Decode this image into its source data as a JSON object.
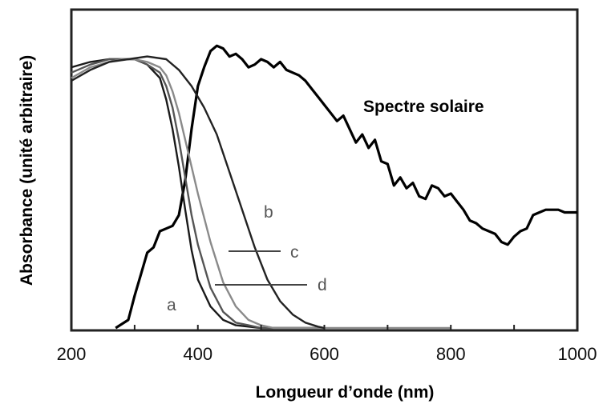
{
  "chart_data": {
    "type": "line",
    "title": "",
    "xlabel": "Longueur d’onde (nm)",
    "ylabel": "Absorbance (unité arbitraire)",
    "xlim": [
      200,
      1000
    ],
    "ylim": [
      0,
      1.05
    ],
    "x_ticks": [
      200,
      400,
      600,
      800,
      1000
    ],
    "x_tick_labels": [
      "200",
      "400",
      "600",
      "800",
      "1000"
    ],
    "grid": false,
    "legend": "none",
    "series": [
      {
        "name": "Spectre solaire",
        "color": "#000000",
        "x": [
          270,
          290,
          300,
          310,
          320,
          330,
          340,
          350,
          360,
          370,
          380,
          390,
          400,
          410,
          420,
          430,
          440,
          450,
          460,
          470,
          480,
          490,
          500,
          510,
          520,
          530,
          540,
          550,
          560,
          570,
          580,
          590,
          600,
          610,
          620,
          630,
          640,
          650,
          660,
          670,
          680,
          690,
          700,
          710,
          720,
          730,
          740,
          750,
          760,
          770,
          780,
          790,
          800,
          810,
          820,
          830,
          840,
          850,
          860,
          870,
          880,
          890,
          900,
          910,
          920,
          930,
          940,
          950,
          960,
          970,
          980,
          990,
          1000
        ],
        "y": [
          0.0,
          0.03,
          0.12,
          0.2,
          0.28,
          0.3,
          0.36,
          0.37,
          0.38,
          0.42,
          0.55,
          0.74,
          0.9,
          0.97,
          1.03,
          1.05,
          1.04,
          1.01,
          1.02,
          1.0,
          0.97,
          0.98,
          1.0,
          0.99,
          0.97,
          0.99,
          0.96,
          0.95,
          0.94,
          0.92,
          0.89,
          0.86,
          0.83,
          0.8,
          0.77,
          0.79,
          0.74,
          0.69,
          0.72,
          0.67,
          0.7,
          0.62,
          0.61,
          0.53,
          0.56,
          0.52,
          0.54,
          0.49,
          0.48,
          0.53,
          0.52,
          0.49,
          0.5,
          0.47,
          0.44,
          0.4,
          0.39,
          0.37,
          0.36,
          0.35,
          0.32,
          0.31,
          0.34,
          0.36,
          0.37,
          0.42,
          0.43,
          0.44,
          0.44,
          0.44,
          0.43,
          0.43,
          0.43
        ]
      },
      {
        "name": "a",
        "color": "#1a1a1a",
        "x": [
          200,
          230,
          260,
          280,
          300,
          320,
          340,
          350,
          360,
          370,
          380,
          390,
          400,
          420,
          440,
          460,
          480,
          500,
          520,
          560,
          600
        ],
        "y": [
          0.97,
          0.99,
          1.0,
          1.0,
          1.0,
          0.98,
          0.93,
          0.85,
          0.74,
          0.6,
          0.44,
          0.29,
          0.18,
          0.08,
          0.03,
          0.01,
          0.005,
          0.0,
          0.0,
          0.0,
          0.0
        ]
      },
      {
        "name": "c",
        "color": "#555555",
        "x": [
          200,
          230,
          260,
          280,
          300,
          320,
          340,
          350,
          360,
          370,
          380,
          390,
          400,
          420,
          440,
          460,
          480,
          500,
          520,
          560,
          600
        ],
        "y": [
          0.95,
          0.98,
          1.0,
          1.0,
          1.0,
          0.98,
          0.95,
          0.9,
          0.82,
          0.7,
          0.56,
          0.42,
          0.31,
          0.15,
          0.06,
          0.02,
          0.01,
          0.0,
          0.0,
          0.0,
          0.0
        ]
      },
      {
        "name": "d",
        "color": "#8a8a8a",
        "x": [
          200,
          230,
          260,
          280,
          300,
          320,
          340,
          350,
          360,
          370,
          380,
          390,
          400,
          420,
          440,
          460,
          480,
          500,
          520,
          560,
          600,
          700,
          800
        ],
        "y": [
          0.93,
          0.97,
          0.99,
          1.0,
          1.0,
          0.99,
          0.97,
          0.94,
          0.88,
          0.8,
          0.7,
          0.6,
          0.5,
          0.32,
          0.17,
          0.08,
          0.03,
          0.01,
          0.0,
          0.0,
          0.0,
          0.0,
          0.0
        ]
      },
      {
        "name": "b",
        "color": "#222222",
        "x": [
          200,
          230,
          260,
          290,
          320,
          350,
          370,
          390,
          410,
          430,
          450,
          470,
          490,
          510,
          530,
          550,
          570,
          590,
          600
        ],
        "y": [
          0.92,
          0.96,
          0.99,
          1.0,
          1.01,
          1.0,
          0.96,
          0.9,
          0.82,
          0.72,
          0.58,
          0.44,
          0.3,
          0.18,
          0.1,
          0.05,
          0.02,
          0.005,
          0.0
        ]
      }
    ],
    "x_tick_values": [
      200,
      300,
      400,
      500,
      600,
      700,
      800,
      900,
      1000
    ]
  },
  "colors": {
    "frame": "#222222",
    "background": "#ffffff"
  }
}
